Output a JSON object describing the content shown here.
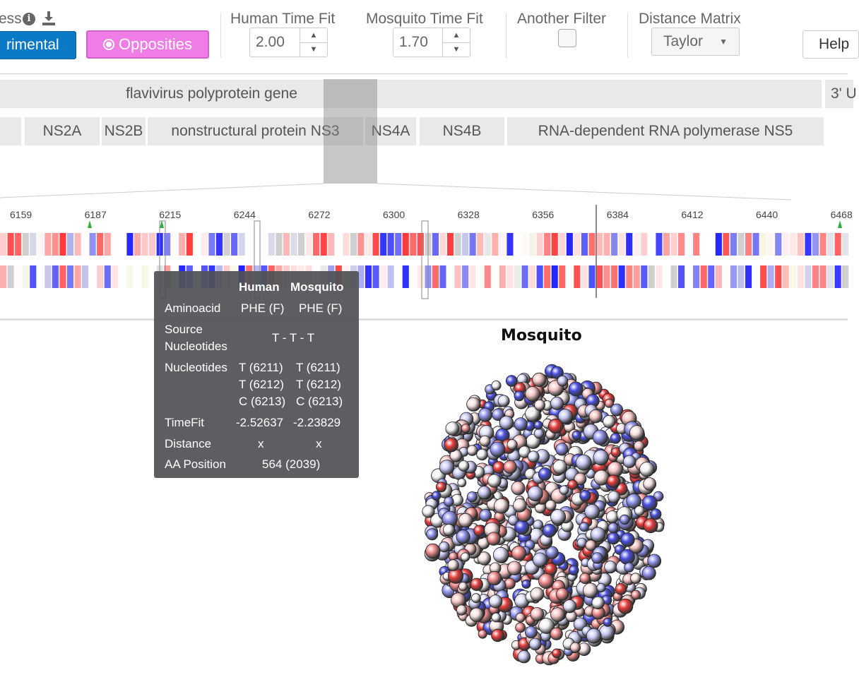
{
  "toolbar": {
    "process_label_partial": "ess",
    "info_icon": "info-icon",
    "download_icon": "download-icon",
    "experimental_label": "rimental",
    "opposities_label": "Opposities",
    "human_time_fit": {
      "label": "Human Time Fit",
      "value": "2.00"
    },
    "mosquito_time_fit": {
      "label": "Mosquito Time Fit",
      "value": "1.70"
    },
    "another_filter": {
      "label": "Another Filter"
    },
    "distance_matrix": {
      "label": "Distance Matrix",
      "selected": "Taylor"
    },
    "help_label": "Help"
  },
  "genes": {
    "top_label": "flavivirus polyprotein gene",
    "top_right_label": "3' U",
    "segments": [
      {
        "label": ""
      },
      {
        "label": "NS2A"
      },
      {
        "label": "NS2B"
      },
      {
        "label": "nonstructural protein NS3"
      },
      {
        "label": "NS4A"
      },
      {
        "label": "NS4B"
      },
      {
        "label": "RNA-dependent RNA polymerase NS5"
      }
    ]
  },
  "sequence": {
    "ticks": [
      "6159",
      "6187",
      "6215",
      "6244",
      "6272",
      "6300",
      "6328",
      "6356",
      "6384",
      "6412",
      "6440",
      "6468"
    ],
    "markers_at": [
      "6187",
      "6215",
      "6468"
    ]
  },
  "tooltip": {
    "col_human": "Human",
    "col_mosquito": "Mosquito",
    "rows": {
      "aminoacid": {
        "label": "Aminoacid",
        "human": "PHE (F)",
        "mosquito": "PHE (F)"
      },
      "source": {
        "label_1": "Source",
        "label_2": "Nucleotides",
        "value": "T - T - T"
      },
      "nucleotides": {
        "label": "Nucleotides",
        "human": [
          "T (6211)",
          "T (6212)",
          "C (6213)"
        ],
        "mosquito": [
          "T (6211)",
          "T (6212)",
          "C (6213)"
        ]
      },
      "timefit": {
        "label": "TimeFit",
        "human": "-2.52637",
        "mosquito": "-2.23829"
      },
      "distance": {
        "label": "Distance",
        "human": "x",
        "mosquito": "x"
      },
      "aa_position": {
        "label": "AA Position",
        "value": "564 (2039)"
      }
    }
  },
  "structure": {
    "title": "Mosquito"
  },
  "colors": {
    "red": "#e8303a",
    "blue": "#2d2de8",
    "tooltip_bg": "#505256",
    "pink": "#ee7ee6",
    "accent": "#0a79c6"
  }
}
